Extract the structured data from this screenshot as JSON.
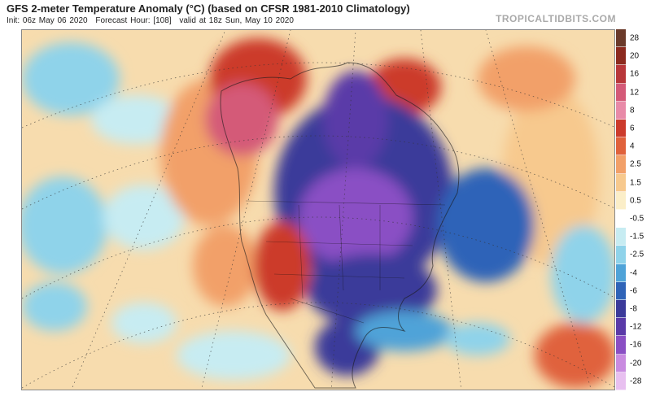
{
  "header": {
    "title": "GFS 2-meter Temperature Anomaly (°C) (based on CFSR 1981-2010 Climatology)",
    "init": "Init: 06z May 06 2020",
    "forecast_hour": "Forecast Hour: [108]",
    "valid": "valid at 18z Sun, May 10 2020",
    "brand": "TROPICALTIDBITS.COM"
  },
  "colorbar": {
    "labels": [
      "28",
      "20",
      "16",
      "12",
      "8",
      "6",
      "4",
      "2.5",
      "1.5",
      "0.5",
      "-0.5",
      "-1.5",
      "-2.5",
      "-4",
      "-6",
      "-8",
      "-12",
      "-16",
      "-20",
      "-28"
    ],
    "colors": [
      "#6b3a2a",
      "#8c2a1e",
      "#b8373a",
      "#d45a78",
      "#e88aa8",
      "#cc3b2c",
      "#e0623c",
      "#f2a069",
      "#f7c98e",
      "#fbeec8",
      "#ffffff",
      "#c7ecf2",
      "#8fd3ea",
      "#4fa3d8",
      "#2f64b8",
      "#3b3a9a",
      "#5a3aa8",
      "#8a4fc4",
      "#c98be0",
      "#e8c0f0"
    ]
  },
  "map_icons": {
    "anomaly_field": "temperature-anomaly-field",
    "coastline": "coastline-outline"
  }
}
